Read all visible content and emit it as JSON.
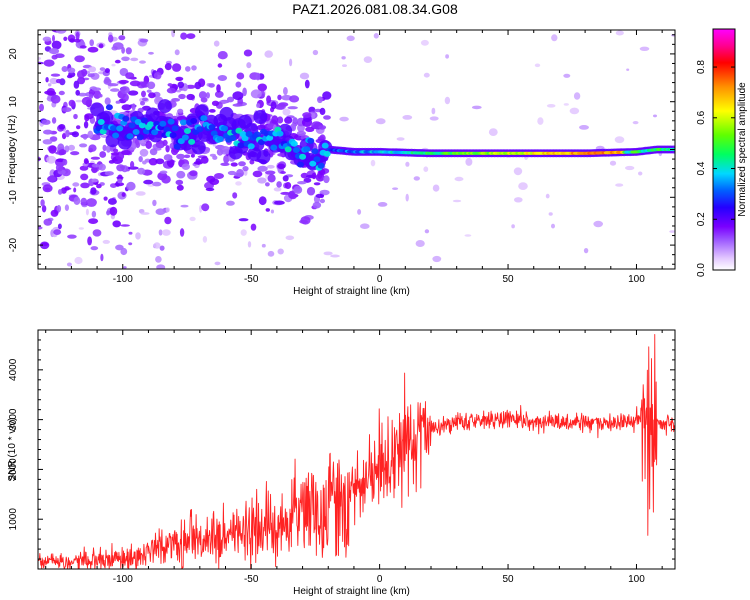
{
  "title": "PAZ1.2026.081.08.34.G08",
  "colors": {
    "snr_line": "#ff2222",
    "cmap": [
      "#ffffff",
      "#e2c6ff",
      "#a060ff",
      "#7a00ff",
      "#2400ff",
      "#0060ff",
      "#00d8ff",
      "#00ff60",
      "#60ff00",
      "#ffff00",
      "#ff9000",
      "#ff0000",
      "#ff0090",
      "#ff00ff"
    ]
  },
  "chart_data": [
    {
      "type": "heatmap",
      "title": "PAZ1.2026.081.08.34.G08",
      "xlabel": "Height of straight line (km)",
      "ylabel": "Frequency (Hz)",
      "xlim": [
        -133,
        115
      ],
      "ylim": [
        -25,
        25
      ],
      "xticks": [
        -100,
        -50,
        0,
        50,
        100
      ],
      "yticks": [
        -20,
        -10,
        0,
        10,
        20
      ],
      "colorbar": {
        "label": "Normalized spectral amplitude",
        "range": [
          0,
          0.95
        ],
        "ticks": [
          "0.0",
          "0.2",
          "0.4",
          "0.6",
          "0.8"
        ]
      },
      "ridge": [
        {
          "x": -108,
          "y": 5
        },
        {
          "x": -92,
          "y": 5
        },
        {
          "x": -85,
          "y": 6
        },
        {
          "x": -78,
          "y": 2
        },
        {
          "x": -70,
          "y": 5
        },
        {
          "x": -55,
          "y": 3
        },
        {
          "x": -40,
          "y": 2
        },
        {
          "x": -30,
          "y": 0
        },
        {
          "x": -23,
          "y": -2
        },
        {
          "x": -20,
          "y": 0
        },
        {
          "x": -10,
          "y": -0.5
        },
        {
          "x": 0,
          "y": -0.5
        },
        {
          "x": 20,
          "y": -0.8
        },
        {
          "x": 50,
          "y": -0.8
        },
        {
          "x": 80,
          "y": -0.8
        },
        {
          "x": 100,
          "y": -0.5
        },
        {
          "x": 108,
          "y": 0
        },
        {
          "x": 115,
          "y": 0
        }
      ]
    },
    {
      "type": "line",
      "xlabel": "Height of straight line (km)",
      "ylabel": "SNR (10 * v/v)",
      "xlim": [
        -133,
        115
      ],
      "ylim": [
        0,
        4800
      ],
      "xticks": [
        -100,
        -50,
        0,
        50,
        100
      ],
      "yticks": [
        1000,
        2000,
        3000,
        4000
      ],
      "series": [
        {
          "name": "SNR",
          "x": [
            -133,
            -120,
            -110,
            -100,
            -90,
            -80,
            -70,
            -60,
            -50,
            -40,
            -30,
            -25,
            -20,
            -15,
            -12,
            -10,
            -5,
            0,
            5,
            10,
            20,
            30,
            40,
            50,
            60,
            70,
            80,
            90,
            100,
            103,
            105,
            106,
            107,
            108,
            110,
            115
          ],
          "values": [
            120,
            150,
            200,
            250,
            350,
            500,
            650,
            700,
            750,
            900,
            1100,
            1300,
            1400,
            1500,
            1600,
            1650,
            1900,
            2100,
            2300,
            2500,
            2800,
            2950,
            3000,
            3000,
            2950,
            2950,
            2950,
            2950,
            3000,
            3100,
            3400,
            2400,
            2600,
            2900,
            2900,
            2900
          ]
        }
      ]
    }
  ]
}
